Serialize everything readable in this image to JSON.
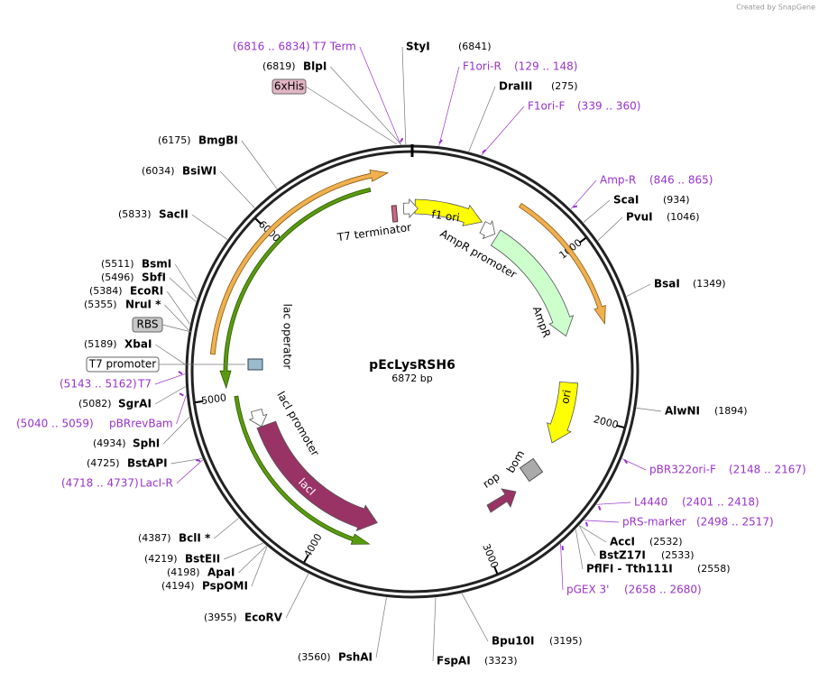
{
  "header": {
    "credit": "Created by SnapGene"
  },
  "map": {
    "name": "pEcLysRSH6",
    "length": "6872 bp",
    "ticks": [
      1000,
      2000,
      3000,
      4000,
      5000,
      6000
    ]
  },
  "enzymes": [
    {
      "name": "StyI",
      "position": "(6841)"
    },
    {
      "name": "DraIII",
      "position": "(275)"
    },
    {
      "name": "ScaI",
      "position": "(934)"
    },
    {
      "name": "PvuI",
      "position": "(1046)"
    },
    {
      "name": "BsaI",
      "position": "(1349)"
    },
    {
      "name": "AlwNI",
      "position": "(1894)"
    },
    {
      "name": "AccI",
      "position": "(2532)"
    },
    {
      "name": "BstZ17I",
      "position": "(2533)"
    },
    {
      "name": "PflFI - Tth111I",
      "position": "(2558)"
    },
    {
      "name": "Bpu10I",
      "position": "(3195)"
    },
    {
      "name": "FspAI",
      "position": "(3323)"
    },
    {
      "name": "PshAI",
      "position": "(3560)"
    },
    {
      "name": "EcoRV",
      "position": "(3955)"
    },
    {
      "name": "BlpI",
      "position": "(6819)"
    },
    {
      "name": "BmgBI",
      "position": "(6175)"
    },
    {
      "name": "BsiWI",
      "position": "(6034)"
    },
    {
      "name": "SacII",
      "position": "(5833)"
    },
    {
      "name": "BsmI",
      "position": "(5511)"
    },
    {
      "name": "SbfI",
      "position": "(5496)"
    },
    {
      "name": "EcoRI",
      "position": "(5384)"
    },
    {
      "name": "NruI *",
      "position": "(5355)"
    },
    {
      "name": "XbaI",
      "position": "(5189)"
    },
    {
      "name": "SgrAI",
      "position": "(5082)"
    },
    {
      "name": "SphI",
      "position": "(4934)"
    },
    {
      "name": "BstAPI",
      "position": "(4725)"
    },
    {
      "name": "BclI *",
      "position": "(4387)"
    },
    {
      "name": "BstEII",
      "position": "(4219)"
    },
    {
      "name": "ApaI",
      "position": "(4198)"
    },
    {
      "name": "PspOMI",
      "position": "(4194)"
    }
  ],
  "primers": [
    {
      "name": "T7 Term",
      "range": "(6816 .. 6834)"
    },
    {
      "name": "F1ori-R",
      "range": "(129 .. 148)"
    },
    {
      "name": "F1ori-F",
      "range": "(339 .. 360)"
    },
    {
      "name": "Amp-R",
      "range": "(846 .. 865)"
    },
    {
      "name": "pBR322ori-F",
      "range": "(2148 .. 2167)"
    },
    {
      "name": "L4440",
      "range": "(2401 .. 2418)"
    },
    {
      "name": "pRS-marker",
      "range": "(2498 .. 2517)"
    },
    {
      "name": "pGEX 3'",
      "range": "(2658 .. 2680)"
    },
    {
      "name": "T7",
      "range": "(5143 .. 5162)"
    },
    {
      "name": "pBRrevBam",
      "range": "(5040 .. 5059)"
    },
    {
      "name": "LacI-R",
      "range": "(4718 .. 4737)"
    }
  ],
  "boxed_features": [
    {
      "name": "6xHis"
    },
    {
      "name": "RBS"
    },
    {
      "name": "T7 promoter"
    }
  ],
  "features": [
    {
      "name": "f1 ori"
    },
    {
      "name": "AmpR promoter"
    },
    {
      "name": "AmpR"
    },
    {
      "name": "ori"
    },
    {
      "name": "rop"
    },
    {
      "name": "bom"
    },
    {
      "name": "lacI"
    },
    {
      "name": "lacI promoter"
    },
    {
      "name": "lac operator"
    },
    {
      "name": "T7 terminator"
    }
  ]
}
